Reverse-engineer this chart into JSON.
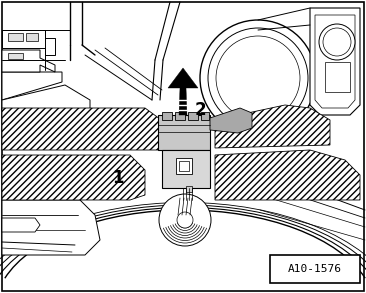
{
  "label_id": "A10-1576",
  "label1": "1",
  "label2": "2",
  "bg_color": "#ffffff",
  "lc": "#000000",
  "gray1": "#b0b0b0",
  "gray2": "#d0d0d0",
  "figsize": [
    3.66,
    2.93
  ],
  "dpi": 100
}
